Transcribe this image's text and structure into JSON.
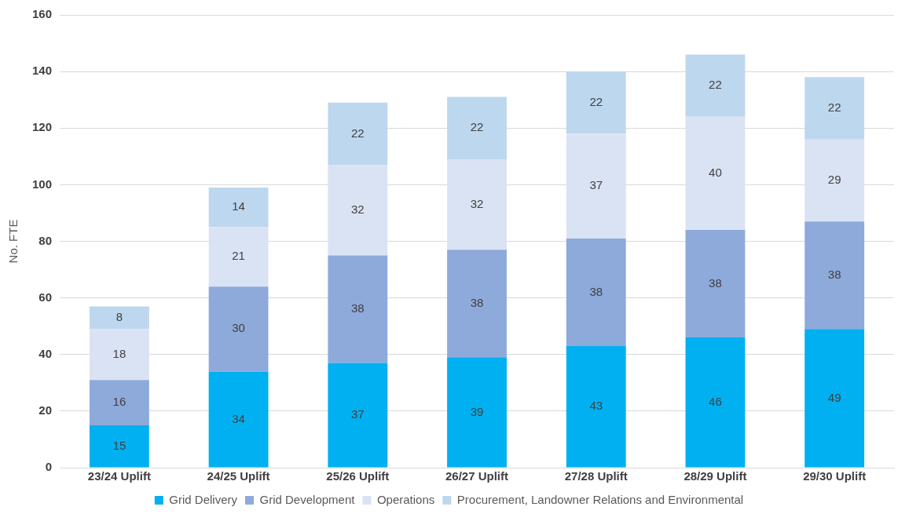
{
  "chart_data": {
    "type": "bar",
    "ylabel": "No. FTE",
    "stacked": true,
    "data_labels": true,
    "grid": "y",
    "legend": "bottom",
    "categories": [
      "23/24 Uplift",
      "24/25 Uplift",
      "25/26 Uplift",
      "26/27 Uplift",
      "27/28 Uplift",
      "28/29 Uplift",
      "29/30 Uplift"
    ],
    "series": [
      {
        "name": "Grid Delivery",
        "color": "#00b0f0",
        "values": [
          15,
          34,
          37,
          39,
          43,
          46,
          49
        ]
      },
      {
        "name": "Grid Development",
        "color": "#8eaadb",
        "values": [
          16,
          30,
          38,
          38,
          38,
          38,
          38
        ]
      },
      {
        "name": "Operations",
        "color": "#dae3f3",
        "values": [
          18,
          21,
          32,
          32,
          37,
          40,
          29
        ]
      },
      {
        "name": "Procurement, Landowner Relations and Environmental",
        "color": "#bdd7ee",
        "values": [
          8,
          14,
          22,
          22,
          22,
          22,
          22
        ]
      }
    ],
    "ylim": [
      0,
      160
    ],
    "yticks": [
      0,
      20,
      40,
      60,
      80,
      100,
      120,
      140,
      160
    ]
  }
}
